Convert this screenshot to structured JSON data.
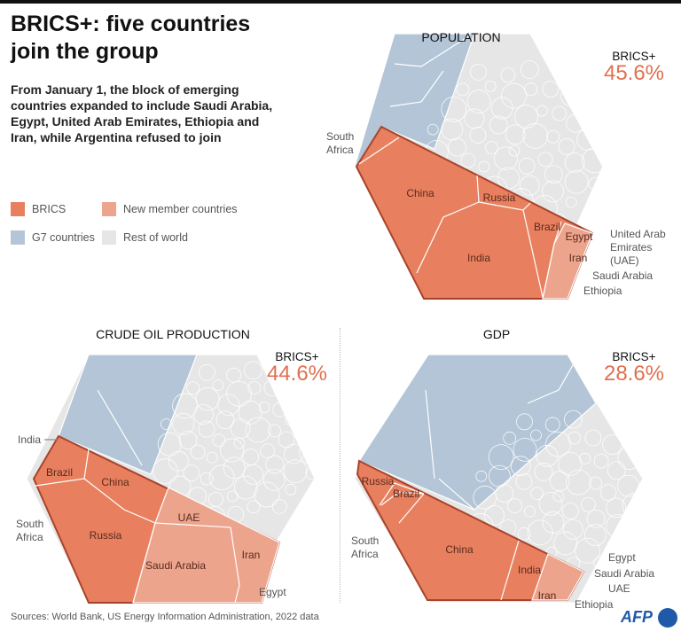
{
  "title": "BRICS+: five countries join the group",
  "subtitle": "From January 1, the block of emerging countries expanded to include Saudi Arabia, Egypt, United Arab Emirates, Ethiopia and Iran, while Argentina refused to join",
  "legend": [
    {
      "label": "BRICS",
      "color": "#e8805f"
    },
    {
      "label": "New member countries",
      "color": "#eda48c"
    },
    {
      "label": "G7 countries",
      "color": "#b3c5d6"
    },
    {
      "label": "Rest of world",
      "color": "#e6e6e6"
    }
  ],
  "colors": {
    "brics": "#e8805f",
    "new": "#eda48c",
    "g7": "#b3c5d6",
    "rest": "#e6e6e6",
    "outline": "#a8432b",
    "accent": "#e0704f"
  },
  "panels": {
    "population": {
      "title": "POPULATION",
      "brics_label": "BRICS+",
      "share": "45.6%",
      "labels": [
        "China",
        "Russia",
        "India",
        "Brazil",
        "Egypt",
        "Iran"
      ],
      "callouts": [
        "South Africa",
        "United Arab Emirates (UAE)",
        "Saudi Arabia",
        "Ethiopia"
      ]
    },
    "oil": {
      "title": "CRUDE OIL PRODUCTION",
      "brics_label": "BRICS+",
      "share": "44.6%",
      "labels": [
        "Brazil",
        "China",
        "Russia",
        "UAE",
        "Saudi Arabia",
        "Iran"
      ],
      "callouts": [
        "India",
        "South Africa",
        "Egypt"
      ]
    },
    "gdp": {
      "title": "GDP",
      "brics_label": "BRICS+",
      "share": "28.6%",
      "labels": [
        "Russia",
        "Brazil",
        "China",
        "India",
        "Iran"
      ],
      "callouts": [
        "South Africa",
        "Egypt",
        "Saudi Arabia",
        "UAE",
        "Ethiopia"
      ]
    }
  },
  "source": "Sources: World Bank, US Energy Information Administration, 2022 data",
  "logo": "AFP"
}
